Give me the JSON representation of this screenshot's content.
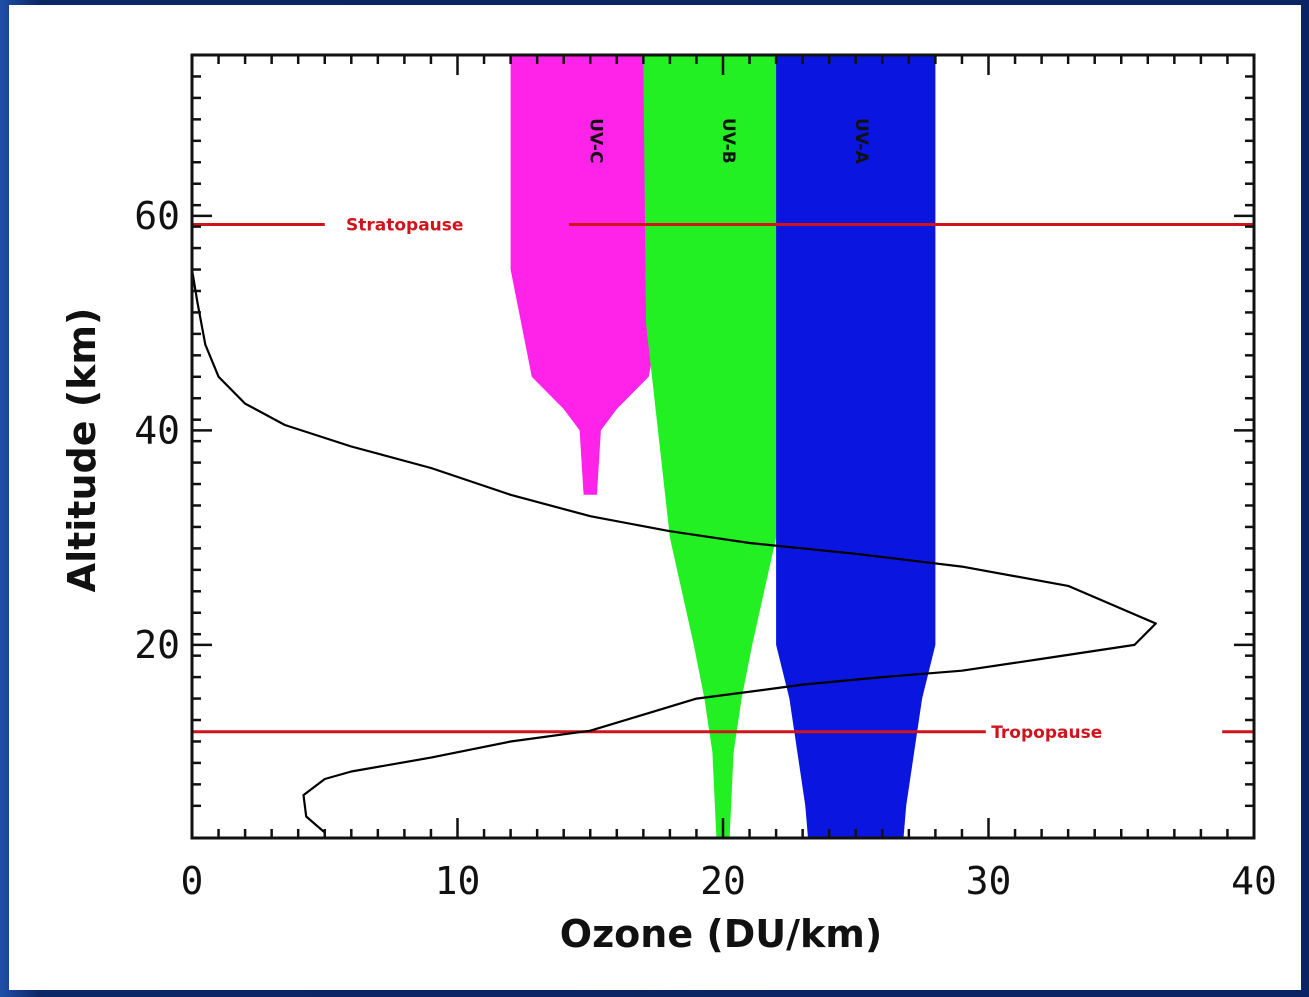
{
  "chart_data": {
    "type": "line",
    "title": "",
    "xlabel": "Ozone (DU/km)",
    "ylabel": "Altitude (km)",
    "xlim": [
      0,
      40
    ],
    "ylim": [
      2,
      75
    ],
    "x_ticks": [
      "0",
      "10",
      "20",
      "30",
      "40"
    ],
    "y_ticks": [
      "20",
      "40",
      "60"
    ],
    "x_tick_values": [
      0,
      10,
      20,
      30,
      40
    ],
    "y_tick_values": [
      20,
      40,
      60
    ],
    "grid": false,
    "series": [
      {
        "points": [
          [
            5.0,
            2.5
          ],
          [
            4.3,
            4
          ],
          [
            4.2,
            6
          ],
          [
            5.0,
            7.5
          ],
          [
            6.0,
            8.2
          ],
          [
            9.0,
            9.5
          ],
          [
            12.0,
            11
          ],
          [
            15.0,
            12
          ],
          [
            17.0,
            13.5
          ],
          [
            19.0,
            15.0
          ],
          [
            21.5,
            15.8
          ],
          [
            23.0,
            16.3
          ],
          [
            26.0,
            17.0
          ],
          [
            29.0,
            17.6
          ],
          [
            32.0,
            18.7
          ],
          [
            35.5,
            20.0
          ],
          [
            36.3,
            22.0
          ],
          [
            33.0,
            25.5
          ],
          [
            29.0,
            27.3
          ],
          [
            25.0,
            28.5
          ],
          [
            21.0,
            29.5
          ],
          [
            18.0,
            30.6
          ],
          [
            15.0,
            32.0
          ],
          [
            12.0,
            34.0
          ],
          [
            9.0,
            36.5
          ],
          [
            6.0,
            38.5
          ],
          [
            3.5,
            40.5
          ],
          [
            2.0,
            42.5
          ],
          [
            1.0,
            45.0
          ],
          [
            0.5,
            48.0
          ],
          [
            0.2,
            52.0
          ],
          [
            0.0,
            55.0
          ]
        ],
        "color": "#000000"
      }
    ],
    "bands": [
      {
        "label": "UV-C",
        "color": "#ff22e8",
        "text_color": "#111111",
        "center": 15.0,
        "profile": [
          [
            75,
            3.0
          ],
          [
            55,
            3.0
          ],
          [
            45,
            2.2
          ],
          [
            42,
            1.0
          ],
          [
            40,
            0.4
          ],
          [
            34,
            0.25
          ]
        ]
      },
      {
        "label": "UV-B",
        "color": "#22f022",
        "text_color": "#111111",
        "center": 20.0,
        "profile": [
          [
            75,
            3.0
          ],
          [
            50,
            2.9
          ],
          [
            30,
            2.0
          ],
          [
            20,
            1.1
          ],
          [
            15,
            0.7
          ],
          [
            10,
            0.4
          ],
          [
            2,
            0.25
          ]
        ]
      },
      {
        "label": "UV-A",
        "color": "#0a16e0",
        "text_color": "#101010",
        "center": 25.0,
        "profile": [
          [
            75,
            3.0
          ],
          [
            20,
            3.0
          ],
          [
            15,
            2.5
          ],
          [
            5,
            1.9
          ],
          [
            2,
            1.8
          ]
        ]
      }
    ],
    "reference_lines": [
      {
        "label": "Stratopause",
        "y": 59.2,
        "color": "#d0141c"
      },
      {
        "label": "Tropopause",
        "y": 11.9,
        "color": "#d0141c"
      }
    ]
  }
}
